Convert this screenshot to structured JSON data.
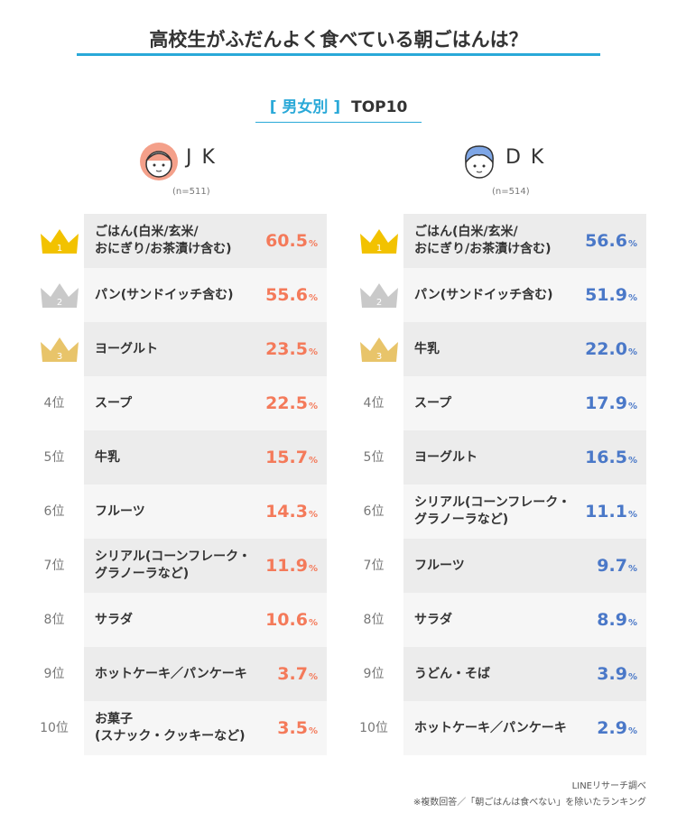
{
  "header": {
    "title": "高校生がふだんよく食べている朝ごはんは？",
    "subtitle": {
      "tag": "[ 男女別 ]",
      "text": "TOP10"
    }
  },
  "ranks": [
    "1",
    "2",
    "3",
    "4位",
    "5位",
    "6位",
    "7位",
    "8位",
    "9位",
    "10位"
  ],
  "unit": "%",
  "groups": [
    {
      "name": "J K",
      "sample": "(n=511)",
      "color": "#f47a5a",
      "items": [
        {
          "name": "ごはん(白米/玄米/\nおにぎり/お茶漬け含む)",
          "value": "60.5"
        },
        {
          "name": "パン(サンドイッチ含む)",
          "value": "55.6"
        },
        {
          "name": "ヨーグルト",
          "value": "23.5"
        },
        {
          "name": "スープ",
          "value": "22.5"
        },
        {
          "name": "牛乳",
          "value": "15.7"
        },
        {
          "name": "フルーツ",
          "value": "14.3"
        },
        {
          "name": "シリアル(コーンフレーク・\nグラノーラなど)",
          "value": "11.9"
        },
        {
          "name": "サラダ",
          "value": "10.6"
        },
        {
          "name": "ホットケーキ／パンケーキ",
          "value": "3.7"
        },
        {
          "name": "お菓子\n(スナック・クッキーなど)",
          "value": "3.5"
        }
      ]
    },
    {
      "name": "D K",
      "sample": "(n=514)",
      "color": "#4a78c8",
      "items": [
        {
          "name": "ごはん(白米/玄米/\nおにぎり/お茶漬け含む)",
          "value": "56.6"
        },
        {
          "name": "パン(サンドイッチ含む)",
          "value": "51.9"
        },
        {
          "name": "牛乳",
          "value": "22.0"
        },
        {
          "name": "スープ",
          "value": "17.9"
        },
        {
          "name": "ヨーグルト",
          "value": "16.5"
        },
        {
          "name": "シリアル(コーンフレーク・\nグラノーラなど)",
          "value": "11.1"
        },
        {
          "name": "フルーツ",
          "value": "9.7"
        },
        {
          "name": "サラダ",
          "value": "8.9"
        },
        {
          "name": "うどん・そば",
          "value": "3.9"
        },
        {
          "name": "ホットケーキ／パンケーキ",
          "value": "2.9"
        }
      ]
    }
  ],
  "footer": {
    "source": "LINEリサーチ調べ",
    "note": "※複数回答／「朝ごはんは食べない」を除いたランキング"
  }
}
